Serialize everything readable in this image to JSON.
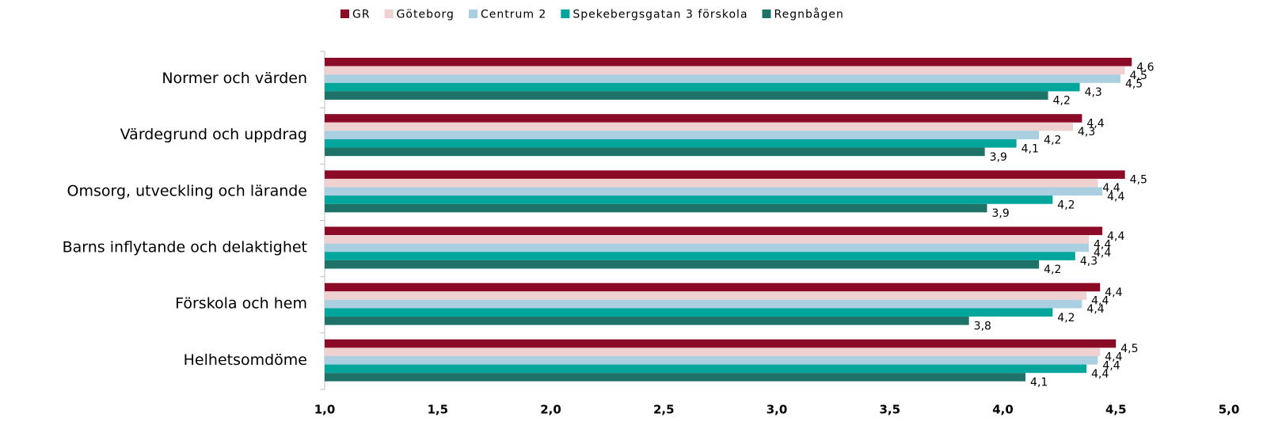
{
  "chart_data": {
    "type": "hbar",
    "categories": [
      "Normer och värden",
      "Värdegrund och uppdrag",
      "Omsorg, utveckling och lärande",
      "Barns inflytande och delaktighet",
      "Förskola och hem",
      "Helhetsomdöme"
    ],
    "series": [
      {
        "name": "GR",
        "color": "#8b0a25",
        "values": [
          4.57,
          4.35,
          4.54,
          4.44,
          4.43,
          4.5
        ],
        "value_labels": [
          "4,6",
          "4,4",
          "4,5",
          "4,4",
          "4,4",
          "4,5"
        ]
      },
      {
        "name": "Göteborg",
        "color": "#efd1d1",
        "values": [
          4.54,
          4.31,
          4.42,
          4.38,
          4.37,
          4.43
        ],
        "value_labels": [
          "4,5",
          "4,3",
          "4,4",
          "4,4",
          "4,4",
          "4,4"
        ]
      },
      {
        "name": "Centrum 2",
        "color": "#a9cfe1",
        "values": [
          4.52,
          4.16,
          4.44,
          4.38,
          4.35,
          4.42
        ],
        "value_labels": [
          "4,5",
          "4,2",
          "4,4",
          "4,4",
          "4,4",
          "4,4"
        ]
      },
      {
        "name": "Spekebergsgatan 3 förskola",
        "color": "#00a69c",
        "values": [
          4.34,
          4.06,
          4.22,
          4.32,
          4.22,
          4.37
        ],
        "value_labels": [
          "4,3",
          "4,1",
          "4,2",
          "4,3",
          "4,2",
          "4,4"
        ]
      },
      {
        "name": "Regnbågen",
        "color": "#1f7268",
        "values": [
          4.2,
          3.92,
          3.93,
          4.16,
          3.85,
          4.1
        ],
        "value_labels": [
          "4,2",
          "3,9",
          "3,9",
          "4,2",
          "3,8",
          "4,1"
        ]
      }
    ],
    "xlim": [
      1.0,
      5.0
    ],
    "xticks": [
      {
        "value": 1.0,
        "label": "1,0"
      },
      {
        "value": 1.5,
        "label": "1,5"
      },
      {
        "value": 2.0,
        "label": "2,0"
      },
      {
        "value": 2.5,
        "label": "2,5"
      },
      {
        "value": 3.0,
        "label": "3,0"
      },
      {
        "value": 3.5,
        "label": "3,5"
      },
      {
        "value": 4.0,
        "label": "4,0"
      },
      {
        "value": 4.5,
        "label": "4,5"
      },
      {
        "value": 5.0,
        "label": "5,0"
      }
    ],
    "legend": "top"
  }
}
